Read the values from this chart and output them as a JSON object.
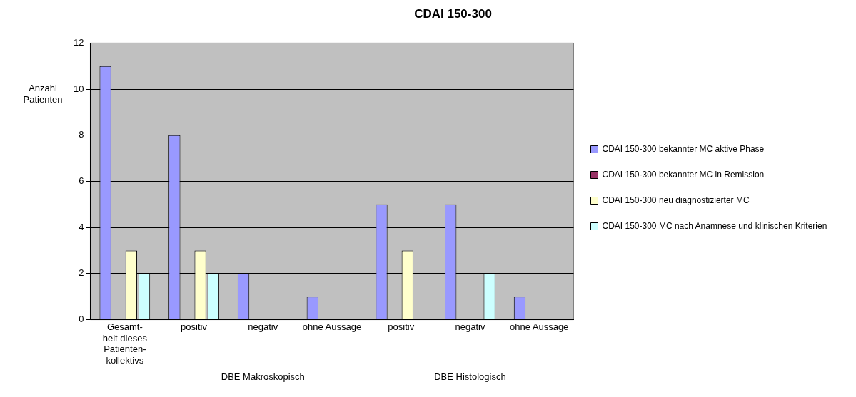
{
  "chart_data": {
    "type": "bar",
    "title": "CDAI 150-300",
    "ylabel": "Anzahl Patienten",
    "categories": [
      "Gesamt-heit dieses Patienten-kollektivs",
      "positiv",
      "negativ",
      "ohne Aussage",
      "positiv",
      "negativ",
      "ohne Aussage"
    ],
    "series": [
      {
        "name": "CDAI 150-300 bekannter MC aktive Phase",
        "color": "#9999ff",
        "values": [
          11,
          8,
          2,
          1,
          5,
          5,
          1
        ]
      },
      {
        "name": "CDAI 150-300 bekannter MC in Remission",
        "color": "#993366",
        "values": [
          0,
          0,
          0,
          0,
          0,
          0,
          0
        ]
      },
      {
        "name": "CDAI 150-300 neu diagnostizierter MC",
        "color": "#ffffcc",
        "values": [
          3,
          3,
          0,
          0,
          3,
          0,
          0
        ]
      },
      {
        "name": "CDAI 150-300 MC nach Anamnese und klinischen Kriterien",
        "color": "#ccffff",
        "values": [
          2,
          2,
          0,
          0,
          0,
          2,
          0
        ]
      }
    ],
    "ylim": [
      0,
      12
    ],
    "yticks": [
      0,
      2,
      4,
      6,
      8,
      10,
      12
    ],
    "grid": "y",
    "legend": "right",
    "annotations": [
      "DBE Makroskopisch",
      "DBE Histologisch"
    ]
  }
}
